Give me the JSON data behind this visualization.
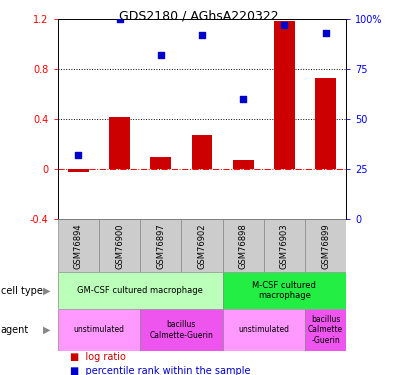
{
  "title": "GDS2180 / AGhsA220322",
  "samples": [
    "GSM76894",
    "GSM76900",
    "GSM76897",
    "GSM76902",
    "GSM76898",
    "GSM76903",
    "GSM76899"
  ],
  "log_ratio": [
    -0.02,
    0.42,
    0.1,
    0.27,
    0.07,
    1.18,
    0.73
  ],
  "percentile_rank": [
    32,
    100,
    82,
    92,
    60,
    97,
    93
  ],
  "bar_color": "#cc0000",
  "dot_color": "#0000cc",
  "ylim_left": [
    -0.4,
    1.2
  ],
  "ylim_right": [
    0,
    100
  ],
  "yticks_left": [
    -0.4,
    0.0,
    0.4,
    0.8,
    1.2
  ],
  "yticks_right": [
    0,
    25,
    50,
    75,
    100
  ],
  "cell_type_groups": [
    {
      "label": "GM-CSF cultured macrophage",
      "start": 0,
      "end": 4,
      "color": "#bbffbb"
    },
    {
      "label": "M-CSF cultured\nmacrophage",
      "start": 4,
      "end": 7,
      "color": "#22ee44"
    }
  ],
  "agent_groups": [
    {
      "label": "unstimulated",
      "start": 0,
      "end": 2,
      "color": "#ff99ff"
    },
    {
      "label": "bacillus\nCalmette-Guerin",
      "start": 2,
      "end": 4,
      "color": "#ee55ee"
    },
    {
      "label": "unstimulated",
      "start": 4,
      "end": 6,
      "color": "#ff99ff"
    },
    {
      "label": "bacillus\nCalmette\n-Guerin",
      "start": 6,
      "end": 7,
      "color": "#ee55ee"
    }
  ],
  "background_color": "#ffffff",
  "sample_box_color": "#cccccc",
  "cell_type_label": "cell type",
  "agent_label": "agent",
  "bar_width": 0.5,
  "dot_size": 25
}
